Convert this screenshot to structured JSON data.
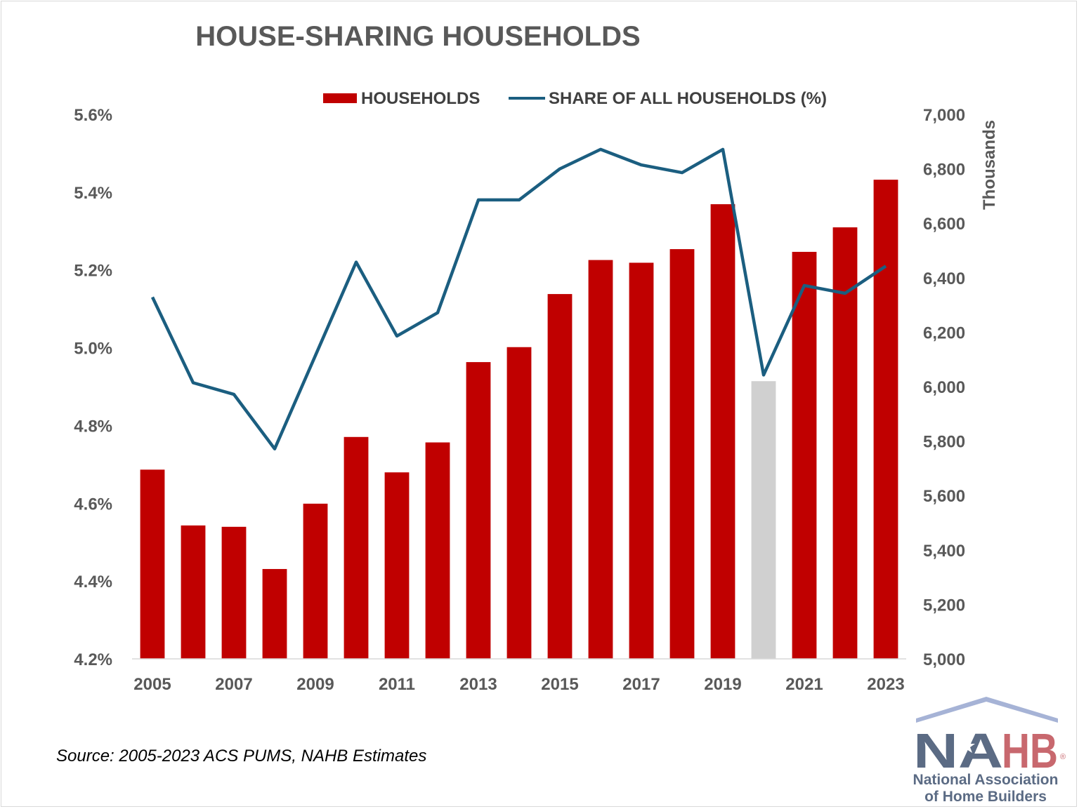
{
  "chart_data": {
    "type": "bar+line",
    "title": "HOUSE-SHARING HOUSEHOLDS",
    "legend": [
      {
        "label": "HOUSEHOLDS",
        "kind": "bar",
        "color": "#c00000"
      },
      {
        "label": "SHARE OF ALL HOUSEHOLDS (%)",
        "kind": "line",
        "color": "#1b5e80"
      }
    ],
    "legend_position": "top-center",
    "categories": [
      "2005",
      "2006",
      "2007",
      "2008",
      "2009",
      "2010",
      "2011",
      "2012",
      "2013",
      "2014",
      "2015",
      "2016",
      "2017",
      "2018",
      "2019",
      "2020",
      "2021",
      "2022",
      "2023"
    ],
    "x_tick_labels": [
      "2005",
      "2007",
      "2009",
      "2011",
      "2013",
      "2015",
      "2017",
      "2019",
      "2021",
      "2023"
    ],
    "series": [
      {
        "name": "HOUSEHOLDS",
        "type": "bar",
        "axis": "right",
        "unit": "Thousands",
        "values": [
          5695,
          5490,
          5485,
          5330,
          5570,
          5815,
          5685,
          5795,
          6090,
          6145,
          6340,
          6465,
          6455,
          6505,
          6670,
          6020,
          6495,
          6585,
          6760
        ],
        "highlight": {
          "category": "2020",
          "color": "#d0d0d0"
        }
      },
      {
        "name": "SHARE OF ALL HOUSEHOLDS (%)",
        "type": "line",
        "axis": "left",
        "values": [
          5.13,
          4.91,
          4.88,
          4.74,
          4.98,
          5.22,
          5.03,
          5.09,
          5.38,
          5.38,
          5.46,
          5.51,
          5.47,
          5.45,
          5.51,
          4.93,
          5.16,
          5.14,
          5.21
        ]
      }
    ],
    "y_left": {
      "min": 4.2,
      "max": 5.6,
      "step": 0.2,
      "tick_labels": [
        "4.2%",
        "4.4%",
        "4.6%",
        "4.8%",
        "5.0%",
        "5.2%",
        "5.4%",
        "5.6%"
      ]
    },
    "y_right": {
      "min": 5000,
      "max": 7000,
      "step": 200,
      "tick_labels": [
        "5,000",
        "5,200",
        "5,400",
        "5,600",
        "5,800",
        "6,000",
        "6,200",
        "6,400",
        "6,600",
        "6,800",
        "7,000"
      ],
      "title": "Thousands"
    },
    "grid": false
  },
  "source": "Source: 2005-2023 ACS PUMS, NAHB Estimates",
  "logo": {
    "letters": "NAHB",
    "name_line1": "National Association",
    "name_line2": "of Home Builders",
    "colors": {
      "navy": "#5b6b84",
      "red": "#c8686e",
      "roof": "#a6b3d6"
    }
  }
}
